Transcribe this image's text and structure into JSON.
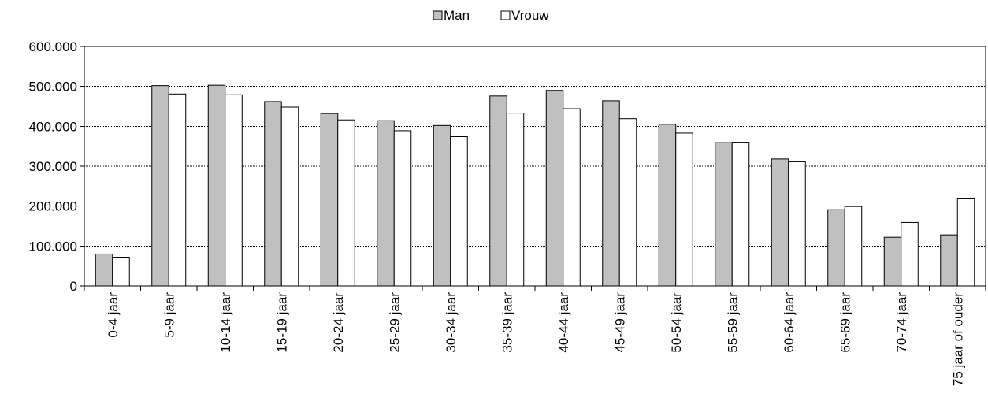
{
  "chart_data": {
    "type": "bar",
    "categories": [
      "0-4 jaar",
      "5-9 jaar",
      "10-14 jaar",
      "15-19 jaar",
      "20-24 jaar",
      "25-29 jaar",
      "30-34 jaar",
      "35-39 jaar",
      "40-44 jaar",
      "45-49 jaar",
      "50-54 jaar",
      "55-59 jaar",
      "60-64 jaar",
      "65-69 jaar",
      "70-74 jaar",
      "75 jaar of ouder"
    ],
    "series": [
      {
        "name": "Man",
        "color": "#c0c0c0",
        "values": [
          80000,
          502000,
          503000,
          462000,
          432000,
          414000,
          402000,
          476000,
          490000,
          464000,
          405000,
          359000,
          318000,
          191000,
          122000,
          128000
        ]
      },
      {
        "name": "Vrouw",
        "color": "#ffffff",
        "values": [
          72000,
          481000,
          479000,
          448000,
          416000,
          389000,
          374000,
          433000,
          444000,
          419000,
          383000,
          360000,
          311000,
          199000,
          159000,
          220000
        ]
      }
    ],
    "ylim": [
      0,
      600000
    ],
    "yticks": [
      0,
      100000,
      200000,
      300000,
      400000,
      500000,
      600000
    ],
    "ytick_labels": [
      "0",
      "100.000",
      "200.000",
      "300.000",
      "400.000",
      "500.000",
      "600.000"
    ],
    "grid": true,
    "legend_position": "top-center"
  }
}
